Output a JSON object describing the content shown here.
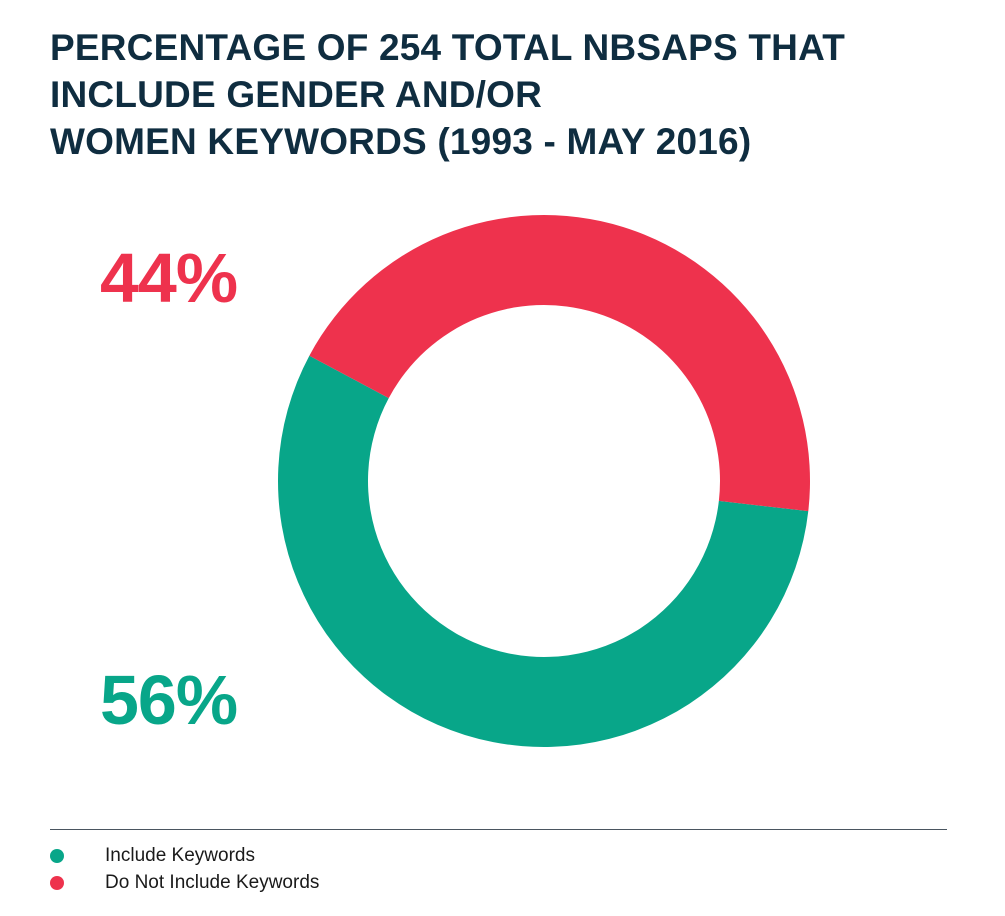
{
  "chart_data": {
    "type": "pie",
    "variant": "donut",
    "title_lines": [
      "PERCENTAGE OF 254 TOTAL NBSAPS THAT",
      "INCLUDE GENDER AND/OR",
      "WOMEN KEYWORDS (1993 - MAY 2016)"
    ],
    "slices": [
      {
        "name": "Include Keywords",
        "value": 56,
        "label": "56%",
        "color": "#08a689"
      },
      {
        "name": "Do Not Include Keywords",
        "value": 44,
        "label": "44%",
        "color": "#ee324d"
      }
    ],
    "legend_placement": "bottom-left",
    "title_color": "#0f2d40"
  }
}
